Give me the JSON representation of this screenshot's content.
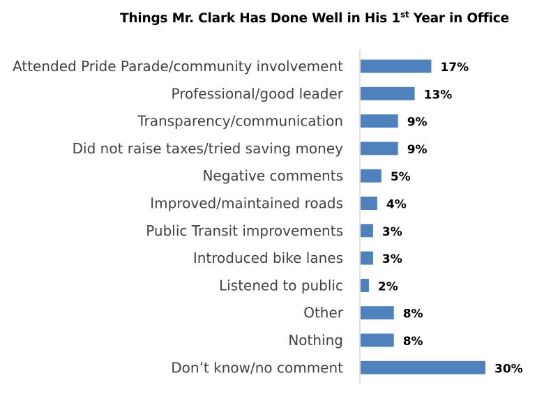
{
  "chart_data": {
    "type": "bar",
    "orientation": "horizontal",
    "title": {
      "prefix": "Things Mr. Clark Has Done Well in His 1",
      "superscript": "st",
      "suffix": " Year in Office"
    },
    "categories": [
      "Attended Pride Parade/community involvement",
      "Professional/good leader",
      "Transparency/communication",
      "Did not raise taxes/tried saving money",
      "Negative comments",
      "Improved/maintained roads",
      "Public Transit improvements",
      "Introduced bike lanes",
      "Listened to public",
      "Other",
      "Nothing",
      "Don’t know/no comment"
    ],
    "values": [
      17,
      13,
      9,
      9,
      5,
      4,
      3,
      3,
      2,
      8,
      8,
      30
    ],
    "value_suffix": "%",
    "xlim": [
      0,
      30
    ],
    "grid": false,
    "legend": "none",
    "bar_color": "#4F81BD",
    "axis_color": "#D9D9D9"
  }
}
